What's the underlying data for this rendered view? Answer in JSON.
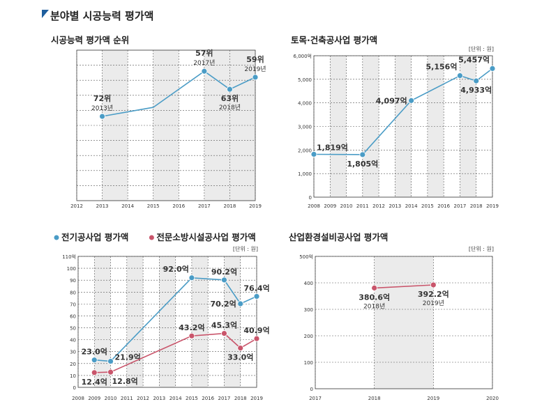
{
  "page": {
    "title": "분야별 시공능력 평가액"
  },
  "chart_data": [
    {
      "type": "line",
      "title": "시공능력 평가액 순위",
      "unit": "",
      "x": [
        2012,
        2013,
        2014,
        2015,
        2016,
        2017,
        2018,
        2019
      ],
      "shaded_years": [
        2013,
        2015,
        2017,
        2018
      ],
      "ylim": [
        100,
        50
      ],
      "grid": true,
      "series": [
        {
          "color": "#4a9cc6",
          "points": [
            {
              "x": 2013,
              "y": 72,
              "value_label": "72위",
              "sub_label": "2013년",
              "marker": true,
              "pos": "above"
            },
            {
              "x": 2015,
              "y": 69,
              "marker": false
            },
            {
              "x": 2017,
              "y": 57,
              "value_label": "57위",
              "sub_label": "2017년",
              "marker": true,
              "pos": "above"
            },
            {
              "x": 2018,
              "y": 63,
              "value_label": "63위",
              "sub_label": "2018년",
              "marker": true,
              "pos": "below"
            },
            {
              "x": 2019,
              "y": 59,
              "value_label": "59위",
              "sub_label": "2019년",
              "marker": true,
              "pos": "above"
            }
          ]
        }
      ]
    },
    {
      "type": "line",
      "title": "토목·건축공사업 평가액",
      "unit": "[단위 : 원]",
      "x": [
        2008,
        2009,
        2010,
        2011,
        2012,
        2013,
        2014,
        2015,
        2016,
        2017,
        2018,
        2019
      ],
      "shaded_years": [
        2009,
        2011,
        2013,
        2015,
        2017
      ],
      "ylim": [
        0,
        6000
      ],
      "yticks": [
        0,
        1000,
        2000,
        3000,
        4000,
        5000,
        6000
      ],
      "ytick_labels": [
        "0",
        "1,000",
        "2,000",
        "3,000",
        "4,000",
        "5,000",
        "6,000억"
      ],
      "grid": true,
      "series": [
        {
          "color": "#4a9cc6",
          "points": [
            {
              "x": 2008,
              "y": 1819,
              "value_label": "1,819억",
              "pos": "above-right"
            },
            {
              "x": 2011,
              "y": 1805,
              "value_label": "1,805억",
              "pos": "below"
            },
            {
              "x": 2014,
              "y": 4097,
              "value_label": "4,097억",
              "pos": "left"
            },
            {
              "x": 2017,
              "y": 5156,
              "value_label": "5,156억",
              "pos": "above-left"
            },
            {
              "x": 2018,
              "y": 4933,
              "value_label": "4,933억",
              "pos": "below"
            },
            {
              "x": 2019,
              "y": 5457,
              "value_label": "5,457억",
              "pos": "above-left"
            }
          ]
        }
      ]
    },
    {
      "type": "line",
      "title": "",
      "legend": [
        {
          "name": "전기공사업 평가액",
          "color": "#4a9cc6"
        },
        {
          "name": "전문소방시설공사업 평가액",
          "color": "#c9556b"
        }
      ],
      "unit": "[단위 : 원]",
      "x": [
        2008,
        2009,
        2010,
        2011,
        2012,
        2013,
        2014,
        2015,
        2016,
        2017,
        2018,
        2019
      ],
      "shaded_years": [
        2009,
        2011,
        2013,
        2015,
        2017
      ],
      "ylim": [
        0,
        110
      ],
      "yticks": [
        0,
        10,
        20,
        30,
        40,
        50,
        60,
        70,
        80,
        90,
        100,
        110
      ],
      "ytick_labels": [
        "0",
        "10",
        "20",
        "30",
        "40",
        "50",
        "60",
        "70",
        "80",
        "90",
        "100",
        "110억"
      ],
      "grid": true,
      "series": [
        {
          "name": "전기공사업 평가액",
          "color": "#4a9cc6",
          "points": [
            {
              "x": 2009,
              "y": 23.0,
              "value_label": "23.0억",
              "pos": "above"
            },
            {
              "x": 2010,
              "y": 21.9,
              "value_label": "21.9억",
              "pos": "right"
            },
            {
              "x": 2015,
              "y": 92.0,
              "value_label": "92.0억",
              "pos": "above-left"
            },
            {
              "x": 2017,
              "y": 90.2,
              "value_label": "90.2억",
              "pos": "above"
            },
            {
              "x": 2018,
              "y": 70.2,
              "value_label": "70.2억",
              "pos": "left"
            },
            {
              "x": 2019,
              "y": 76.4,
              "value_label": "76.4억",
              "pos": "above"
            }
          ]
        },
        {
          "name": "전문소방시설공사업 평가액",
          "color": "#c9556b",
          "points": [
            {
              "x": 2009,
              "y": 12.4,
              "value_label": "12.4억",
              "pos": "below"
            },
            {
              "x": 2010,
              "y": 12.8,
              "value_label": "12.8억",
              "pos": "below-right"
            },
            {
              "x": 2015,
              "y": 43.2,
              "value_label": "43.2억",
              "pos": "above"
            },
            {
              "x": 2017,
              "y": 45.3,
              "value_label": "45.3억",
              "pos": "above"
            },
            {
              "x": 2018,
              "y": 33.0,
              "value_label": "33.0억",
              "pos": "below"
            },
            {
              "x": 2019,
              "y": 40.9,
              "value_label": "40.9억",
              "pos": "above"
            }
          ]
        }
      ]
    },
    {
      "type": "line",
      "title": "산업환경설비공사업 평가액",
      "unit": "[단위 : 원]",
      "x": [
        2017,
        2018,
        2019,
        2020
      ],
      "shaded_years": [
        2018
      ],
      "ylim": [
        0,
        500
      ],
      "yticks": [
        0,
        100,
        200,
        300,
        400,
        500
      ],
      "ytick_labels": [
        "0",
        "100",
        "200",
        "300",
        "400",
        "500억"
      ],
      "grid": true,
      "series": [
        {
          "color": "#c9556b",
          "points": [
            {
              "x": 2018,
              "y": 380.6,
              "value_label": "380.6억",
              "sub_label": "2018년",
              "pos": "below"
            },
            {
              "x": 2019,
              "y": 392.2,
              "value_label": "392.2억",
              "sub_label": "2019년",
              "pos": "below"
            }
          ]
        }
      ]
    }
  ]
}
